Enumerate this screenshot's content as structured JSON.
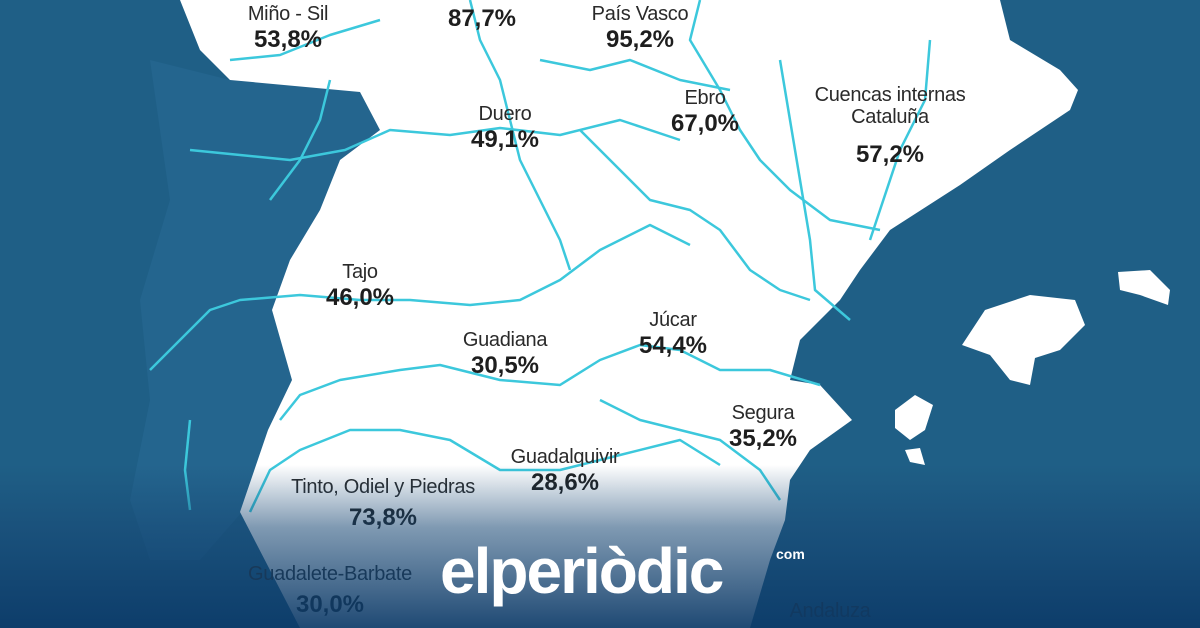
{
  "colors": {
    "sea": "#1f5f86",
    "land": "#ffffff",
    "river": "#3cc8dc",
    "portugal": "#24658e"
  },
  "basins": [
    {
      "id": "mino-sil",
      "name": "Miño - Sil",
      "value": "53,8%"
    },
    {
      "id": "cantabrico",
      "name": "",
      "value": "87,7%"
    },
    {
      "id": "pais-vasco",
      "name": "País Vasco",
      "value": "95,2%"
    },
    {
      "id": "duero",
      "name": "Duero",
      "value": "49,1%"
    },
    {
      "id": "ebro",
      "name": "Ebro",
      "value": "67,0%"
    },
    {
      "id": "cataluna",
      "name": "Cuencas internas",
      "name2": "Cataluña",
      "value": "57,2%"
    },
    {
      "id": "tajo",
      "name": "Tajo",
      "value": "46,0%"
    },
    {
      "id": "guadiana",
      "name": "Guadiana",
      "value": "30,5%"
    },
    {
      "id": "jucar",
      "name": "Júcar",
      "value": "54,4%"
    },
    {
      "id": "segura",
      "name": "Segura",
      "value": "35,2%"
    },
    {
      "id": "guadalquivir",
      "name": "Guadalquivir",
      "value": "28,6%"
    },
    {
      "id": "tinto",
      "name": "Tinto, Odiel y Piedras",
      "value": "73,8%"
    },
    {
      "id": "guadalete",
      "name": "Guadalete-Barbate",
      "value": "30,0%"
    },
    {
      "id": "mediterranea",
      "name": "Andaluza",
      "value": ""
    }
  ],
  "logo": {
    "text": "elperiòdic",
    "suffix": "com"
  }
}
